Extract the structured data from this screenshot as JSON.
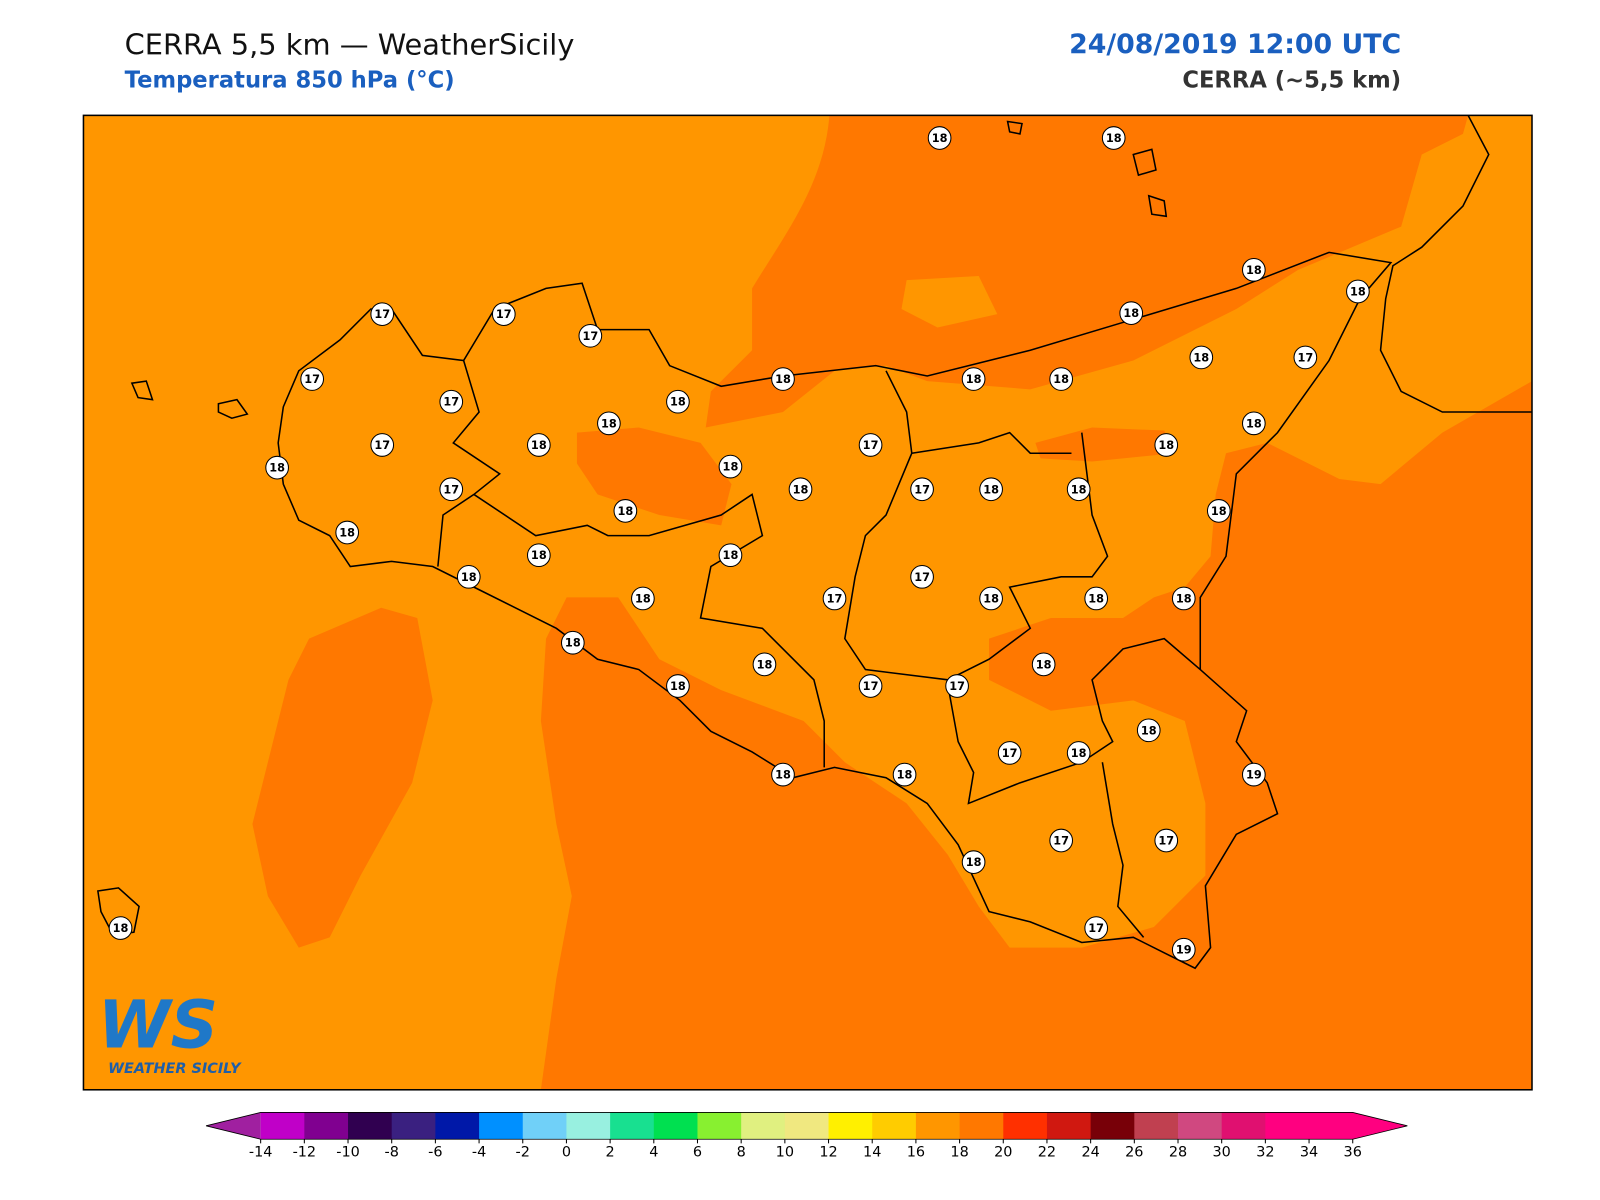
{
  "header": {
    "title": "CERRA 5,5 km — WeatherSicily",
    "subtitle": "Temperatura 850 hPa (°C)",
    "date": "24/08/2019 12:00 UTC",
    "model": "CERRA (~5,5 km)"
  },
  "stations": [
    18,
    18,
    18,
    18,
    17,
    17,
    17,
    18,
    17,
    18,
    18,
    18,
    18,
    17,
    17,
    18,
    18,
    18,
    17,
    18,
    17,
    18,
    18,
    18,
    17,
    18,
    17,
    18,
    18,
    18,
    18,
    18,
    18,
    18,
    18,
    17,
    18,
    17,
    18,
    18,
    18,
    18,
    18,
    18,
    18,
    17,
    17,
    18,
    17,
    18,
    18,
    18,
    19,
    17,
    17,
    18,
    18,
    17,
    19
  ],
  "colorbar": {
    "ticks": [
      -14,
      -12,
      -10,
      -8,
      -6,
      -4,
      -2,
      0,
      2,
      4,
      6,
      8,
      10,
      12,
      14,
      16,
      18,
      20,
      22,
      24,
      26,
      28,
      30,
      32,
      34,
      36
    ],
    "colors": [
      "#c000c8",
      "#800090",
      "#300050",
      "#3a2080",
      "#0018a8",
      "#0090ff",
      "#70d0f8",
      "#98f0e0",
      "#18e090",
      "#00e050",
      "#88f030",
      "#e0f080",
      "#f0e880",
      "#fff000",
      "#ffcc00",
      "#ff9600",
      "#ff7800",
      "#ff3000",
      "#d01810",
      "#780008",
      "#c04050",
      "#d04880",
      "#e01070",
      "#ff0080",
      "#ff0080"
    ],
    "under": "#a020a0",
    "over": "#ff0080"
  },
  "logo": {
    "text": "WS",
    "caption": "WEATHER SICILY"
  }
}
